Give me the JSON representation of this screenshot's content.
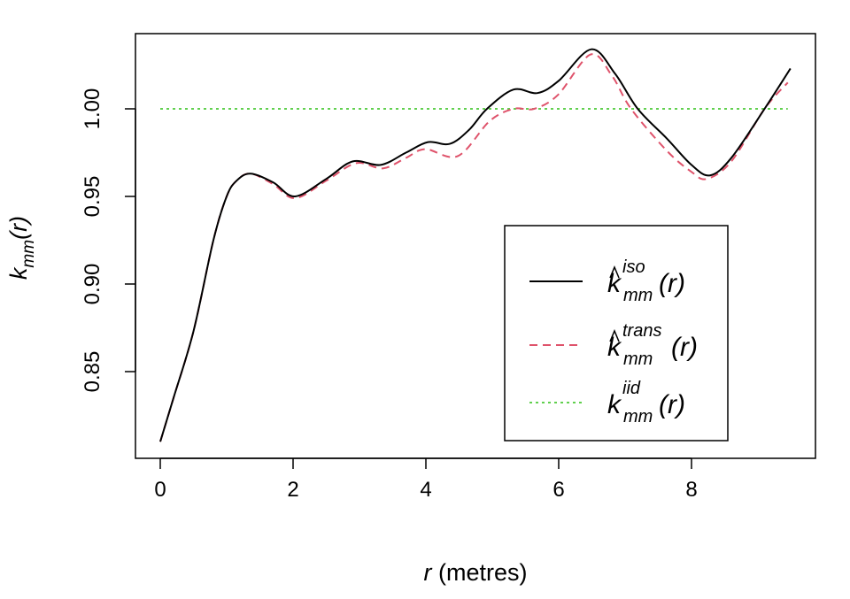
{
  "chart_data": {
    "type": "line",
    "xlabel": {
      "italic": "r",
      "rest": " (metres)"
    },
    "ylabel": {
      "base": "k",
      "sub": "mm",
      "arg": "(r)"
    },
    "xlim": [
      0,
      9.5
    ],
    "ylim": [
      0.81,
      1.035
    ],
    "xticks": [
      0,
      2,
      4,
      6,
      8
    ],
    "yticks": [
      "0.85",
      "0.90",
      "0.95",
      "1.00"
    ],
    "grid": false,
    "legend_placement": "bottom-right",
    "series": [
      {
        "name": "iso",
        "label": {
          "base": "k",
          "hat": true,
          "sup": "iso",
          "sub": "mm",
          "arg": "(r)"
        },
        "color": "#000000",
        "style": "solid",
        "x": [
          0,
          0.2,
          0.5,
          0.8,
          1.0,
          1.15,
          1.36,
          1.7,
          2.03,
          2.5,
          2.9,
          3.32,
          3.7,
          4.03,
          4.36,
          4.65,
          4.92,
          5.32,
          5.68,
          6.0,
          6.49,
          6.85,
          7.19,
          7.63,
          8.0,
          8.28,
          8.6,
          9.1,
          9.49
        ],
        "y": [
          0.81,
          0.835,
          0.873,
          0.925,
          0.95,
          0.959,
          0.963,
          0.958,
          0.95,
          0.96,
          0.97,
          0.968,
          0.975,
          0.981,
          0.98,
          0.988,
          1.0,
          1.011,
          1.009,
          1.016,
          1.034,
          1.02,
          1.0,
          0.983,
          0.968,
          0.962,
          0.972,
          1.0,
          1.023
        ]
      },
      {
        "name": "trans",
        "label": {
          "base": "k",
          "hat": true,
          "sup": "trans",
          "sub": "mm",
          "arg": "(r)"
        },
        "color": "#DF536B",
        "style": "dashed",
        "x": [
          0,
          0.2,
          0.5,
          0.8,
          1.0,
          1.15,
          1.36,
          1.7,
          2.03,
          2.5,
          2.95,
          3.35,
          3.7,
          3.99,
          4.48,
          4.96,
          5.32,
          5.63,
          5.99,
          6.48,
          6.8,
          7.09,
          7.63,
          8.0,
          8.23,
          8.6,
          9.1,
          9.45
        ],
        "y": [
          0.81,
          0.835,
          0.873,
          0.925,
          0.95,
          0.959,
          0.963,
          0.957,
          0.949,
          0.959,
          0.969,
          0.966,
          0.972,
          0.977,
          0.973,
          0.993,
          1.0,
          1.0,
          1.008,
          1.031,
          1.019,
          1.0,
          0.976,
          0.964,
          0.96,
          0.97,
          1.0,
          1.015
        ]
      },
      {
        "name": "iid",
        "label": {
          "base": "k",
          "hat": false,
          "sup": "iid",
          "sub": "mm",
          "arg": "(r)"
        },
        "color": "#61D04F",
        "style": "dotted",
        "x": [
          0,
          9.45
        ],
        "y": [
          1.0,
          1.0
        ]
      }
    ]
  }
}
